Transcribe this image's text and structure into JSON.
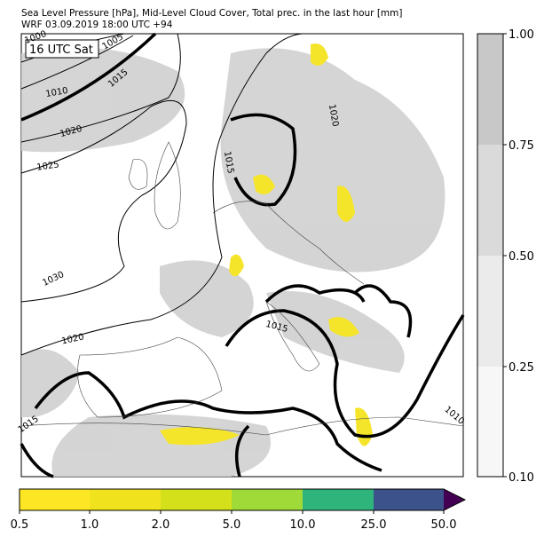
{
  "header": {
    "title_lines": [
      "Sea Level Pressure [hPa], Mid-Level Cloud Cover, Total prec. in the last hour [mm]",
      "WRF 03.09.2019 18:00 UTC +94"
    ]
  },
  "map": {
    "time_label": "16 UTC Sat",
    "contour_labels": [
      "1000",
      "1005",
      "1010",
      "1015",
      "1020",
      "1025",
      "1030",
      "1020",
      "1015",
      "1015",
      "1015",
      "1010",
      "1020"
    ]
  },
  "cloud_colorbar": {
    "tick_labels": [
      "1.00",
      "0.75",
      "0.50",
      "0.25",
      "0.10"
    ]
  },
  "precip_colorbar": {
    "tick_labels": [
      "0.5",
      "1.0",
      "2.0",
      "5.0",
      "10.0",
      "25.0",
      "50.0"
    ]
  }
}
